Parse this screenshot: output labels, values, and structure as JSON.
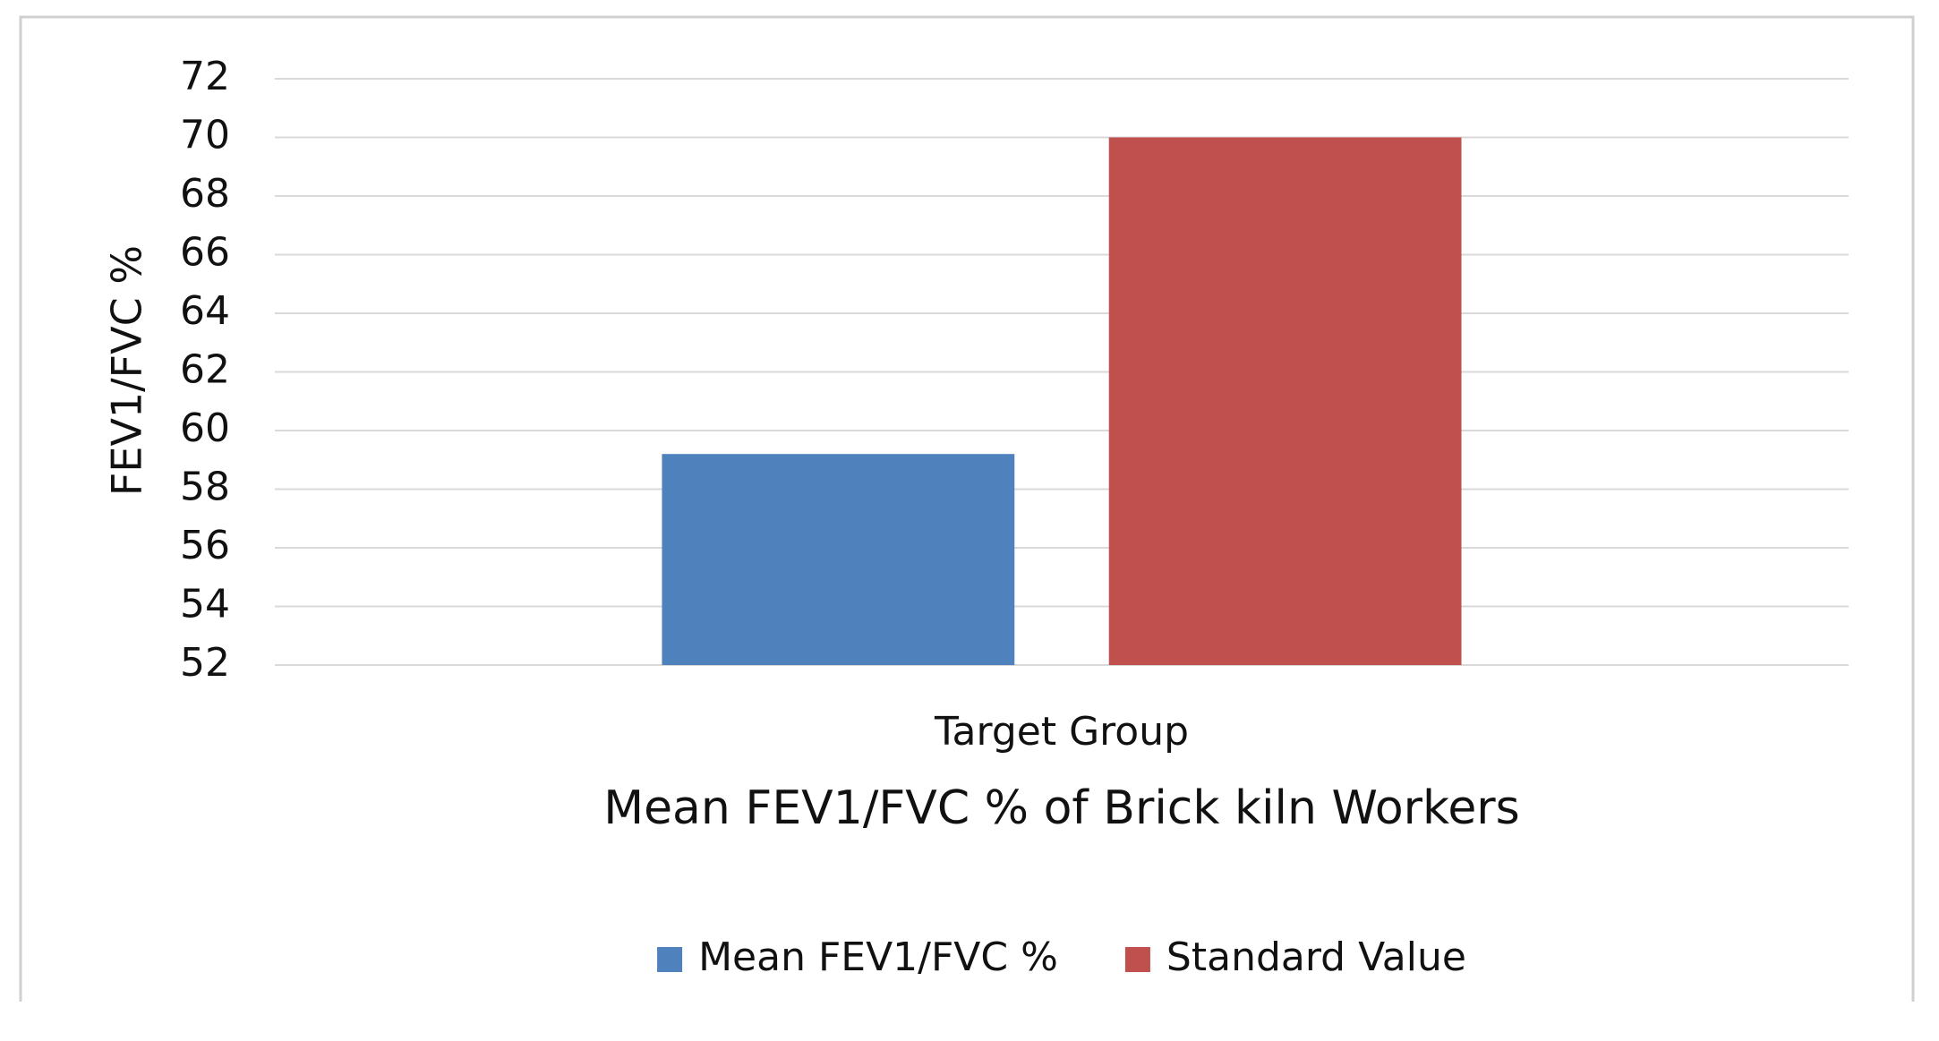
{
  "chart_data": {
    "type": "bar",
    "title": "Mean FEV1/FVC % of Brick kiln Workers",
    "y_label": "FEV1/FVC %",
    "categories": [
      "Target Group"
    ],
    "series": [
      {
        "name": "Mean FEV1/FVC %",
        "color": "#4f81bd",
        "values": [
          59.2
        ]
      },
      {
        "name": "Standard Value",
        "color": "#c0504d",
        "values": [
          70
        ]
      }
    ],
    "ylim": [
      52,
      72
    ],
    "yticks": [
      52,
      54,
      56,
      58,
      60,
      62,
      64,
      66,
      68,
      70,
      72
    ],
    "grid": true,
    "legend": "bottom"
  }
}
